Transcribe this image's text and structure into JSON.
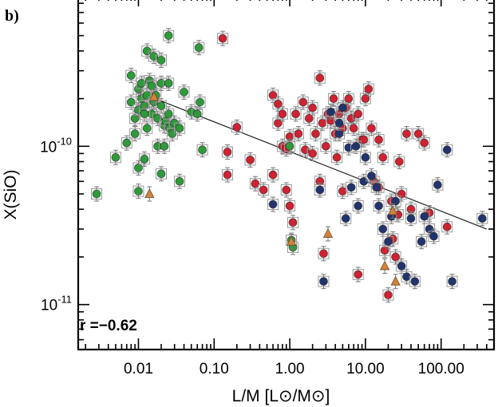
{
  "panel_label": "b)",
  "chart_data": {
    "type": "scatter",
    "title": "",
    "xlabel": "L/M [L⊙/M⊙]",
    "ylabel": "X(SiO)",
    "xscale": "log",
    "yscale": "log",
    "xlim": [
      0.0016,
      500
    ],
    "ylim": [
      5.2e-12,
      9e-10
    ],
    "x_ticks": [
      0.01,
      0.1,
      1,
      10,
      100
    ],
    "x_tick_labels": [
      "0.01",
      "0.10",
      "1.00",
      "10.00",
      "100.00"
    ],
    "y_ticks": [
      1e-11,
      1e-10
    ],
    "y_tick_labels": [
      {
        "base": "10",
        "exp": "-11"
      },
      {
        "base": "10",
        "exp": "-10"
      }
    ],
    "grid": false,
    "annotation": "r =−0.62",
    "fit_line": {
      "x": [
        0.01,
        400
      ],
      "y": [
        2.2e-10,
        3e-11
      ]
    },
    "series": [
      {
        "color": "#2e9a3a",
        "marker": "circle",
        "points": [
          [
            0.0028,
            5e-11
          ],
          [
            0.005,
            8.5e-11
          ],
          [
            0.007,
            1.05e-10
          ],
          [
            0.008,
            1.9e-10
          ],
          [
            0.008,
            2.8e-10
          ],
          [
            0.009,
            1.5e-10
          ],
          [
            0.009,
            1.2e-10
          ],
          [
            0.01,
            2.3e-10
          ],
          [
            0.01,
            1.7e-10
          ],
          [
            0.01,
            7.3e-11
          ],
          [
            0.01,
            5.2e-11
          ],
          [
            0.011,
            2.5e-10
          ],
          [
            0.011,
            2e-10
          ],
          [
            0.012,
            1.8e-10
          ],
          [
            0.012,
            8.3e-11
          ],
          [
            0.013,
            4e-10
          ],
          [
            0.013,
            2.1e-10
          ],
          [
            0.013,
            1.3e-10
          ],
          [
            0.014,
            2.6e-10
          ],
          [
            0.015,
            2.4e-10
          ],
          [
            0.015,
            1.6e-10
          ],
          [
            0.016,
            3.7e-10
          ],
          [
            0.016,
            1.9e-10
          ],
          [
            0.017,
            2.1e-10
          ],
          [
            0.018,
            1.5e-10
          ],
          [
            0.018,
            1e-10
          ],
          [
            0.02,
            3.5e-10
          ],
          [
            0.02,
            2.5e-10
          ],
          [
            0.02,
            6.7e-11
          ],
          [
            0.022,
            1.35e-10
          ],
          [
            0.022,
            1e-10
          ],
          [
            0.023,
            1.45e-10
          ],
          [
            0.025,
            5e-10
          ],
          [
            0.025,
            2.5e-10
          ],
          [
            0.025,
            1.6e-10
          ],
          [
            0.026,
            1.3e-10
          ],
          [
            0.028,
            1.2e-10
          ],
          [
            0.03,
            1.4e-10
          ],
          [
            0.035,
            6e-11
          ],
          [
            0.035,
            1.3e-10
          ],
          [
            0.04,
            2.2e-10
          ],
          [
            0.05,
            1.65e-10
          ],
          [
            0.06,
            1.6e-10
          ],
          [
            0.063,
            4.2e-10
          ],
          [
            0.065,
            1.9e-10
          ],
          [
            0.07,
            9.5e-11
          ],
          [
            0.02,
            1.8e-10
          ],
          [
            0.012,
            1.6e-10
          ],
          [
            1.05,
            2.55e-11
          ],
          [
            1.1,
            2.3e-11
          ],
          [
            1.0,
            1e-10
          ]
        ]
      },
      {
        "color": "#cf2232",
        "marker": "circle",
        "points": [
          [
            0.13,
            4.8e-10
          ],
          [
            0.15,
            9.2e-11
          ],
          [
            0.15,
            6.6e-11
          ],
          [
            0.2,
            1.32e-10
          ],
          [
            0.3,
            8.2e-11
          ],
          [
            0.35,
            5.8e-11
          ],
          [
            0.45,
            5.3e-11
          ],
          [
            0.6,
            6.6e-11
          ],
          [
            0.6,
            2.1e-10
          ],
          [
            0.7,
            1.85e-10
          ],
          [
            0.7,
            1.4e-10
          ],
          [
            0.8,
            1.6e-10
          ],
          [
            0.8,
            1e-10
          ],
          [
            0.9,
            9.6e-11
          ],
          [
            0.9,
            5.3e-11
          ],
          [
            1.0,
            1.15e-10
          ],
          [
            1.0,
            4.2e-11
          ],
          [
            1.1,
            3.3e-11
          ],
          [
            1.2,
            1.6e-10
          ],
          [
            1.3,
            1.2e-10
          ],
          [
            1.5,
            1.9e-10
          ],
          [
            1.6,
            9.5e-11
          ],
          [
            1.8,
            1.5e-10
          ],
          [
            2.0,
            1.75e-10
          ],
          [
            2.2,
            1.2e-10
          ],
          [
            2.5,
            2.7e-10
          ],
          [
            2.5,
            6e-11
          ],
          [
            2.7,
            1.4e-10
          ],
          [
            2.8,
            2.1e-11
          ],
          [
            3.0,
            1e-10
          ],
          [
            3.2,
            1.6e-10
          ],
          [
            3.5,
            1.45e-10
          ],
          [
            3.8,
            2e-10
          ],
          [
            4.0,
            1.2e-10
          ],
          [
            4.2,
            8.5e-11
          ],
          [
            4.5,
            1.6e-10
          ],
          [
            5.0,
            1.3e-10
          ],
          [
            5.0,
            5.2e-11
          ],
          [
            5.5,
            1.75e-10
          ],
          [
            6.0,
            2e-10
          ],
          [
            6.5,
            1.5e-10
          ],
          [
            7.0,
            1.3e-10
          ],
          [
            8.0,
            1.6e-10
          ],
          [
            9.0,
            1.1e-10
          ],
          [
            10.0,
            2e-10
          ],
          [
            11.0,
            2.3e-10
          ],
          [
            12.0,
            1.3e-10
          ],
          [
            13.0,
            6e-11
          ],
          [
            15.0,
            1.1e-10
          ],
          [
            15.0,
            5.5e-11
          ],
          [
            17.0,
            8.5e-11
          ],
          [
            18.0,
            2.2e-11
          ],
          [
            20.0,
            1.15e-11
          ],
          [
            22.0,
            4.5e-11
          ],
          [
            23.0,
            2.6e-11
          ],
          [
            25.0,
            2e-11
          ],
          [
            27.0,
            3.7e-11
          ],
          [
            28.0,
            8e-11
          ],
          [
            30.0,
            5e-11
          ],
          [
            35.0,
            1.2e-10
          ],
          [
            40.0,
            4e-11
          ],
          [
            50.0,
            1.2e-10
          ],
          [
            60.0,
            1.05e-10
          ],
          [
            70.0,
            3.8e-11
          ],
          [
            120.0,
            3.1e-11
          ],
          [
            8.0,
            1.55e-11
          ],
          [
            9.5,
            1.1e-10
          ],
          [
            2.0,
            9e-11
          ]
        ]
      },
      {
        "color": "#22346e",
        "marker": "circle",
        "points": [
          [
            0.6,
            4.3e-11
          ],
          [
            2.5,
            5.3e-11
          ],
          [
            2.8,
            1.4e-11
          ],
          [
            3.5,
            1.65e-10
          ],
          [
            4.5,
            1.2e-10
          ],
          [
            5.0,
            1.75e-10
          ],
          [
            5.5,
            3.5e-11
          ],
          [
            6.0,
            9.8e-11
          ],
          [
            6.5,
            5.5e-11
          ],
          [
            7.5,
            1e-10
          ],
          [
            8.0,
            4.2e-11
          ],
          [
            9.5,
            6e-11
          ],
          [
            10.0,
            8.5e-11
          ],
          [
            12.0,
            6.5e-11
          ],
          [
            14.0,
            5.5e-11
          ],
          [
            15.0,
            4.2e-11
          ],
          [
            17.0,
            3e-11
          ],
          [
            20.0,
            2.5e-11
          ],
          [
            22.0,
            3.6e-11
          ],
          [
            25.0,
            4.5e-11
          ],
          [
            30.0,
            1.75e-11
          ],
          [
            35.0,
            1.5e-11
          ],
          [
            40.0,
            3.5e-11
          ],
          [
            45.0,
            1.4e-11
          ],
          [
            55.0,
            2.5e-11
          ],
          [
            60.0,
            3.6e-11
          ],
          [
            70.0,
            3e-11
          ],
          [
            80.0,
            2.7e-11
          ],
          [
            90.0,
            5.7e-11
          ],
          [
            120.0,
            9.5e-11
          ],
          [
            140.0,
            1.4e-11
          ],
          [
            350.0,
            3.5e-11
          ],
          [
            4.5,
            1.4e-10
          ]
        ]
      },
      {
        "color": "#d4823a",
        "marker": "triangle",
        "points": [
          [
            0.016,
            2.05e-10
          ],
          [
            0.014,
            5e-11
          ],
          [
            3.2,
            2.8e-11
          ],
          [
            23.0,
            3.9e-11
          ],
          [
            18.0,
            1.75e-11
          ],
          [
            25.0,
            1.4e-11
          ],
          [
            1.05,
            2.5e-11
          ]
        ]
      }
    ]
  }
}
